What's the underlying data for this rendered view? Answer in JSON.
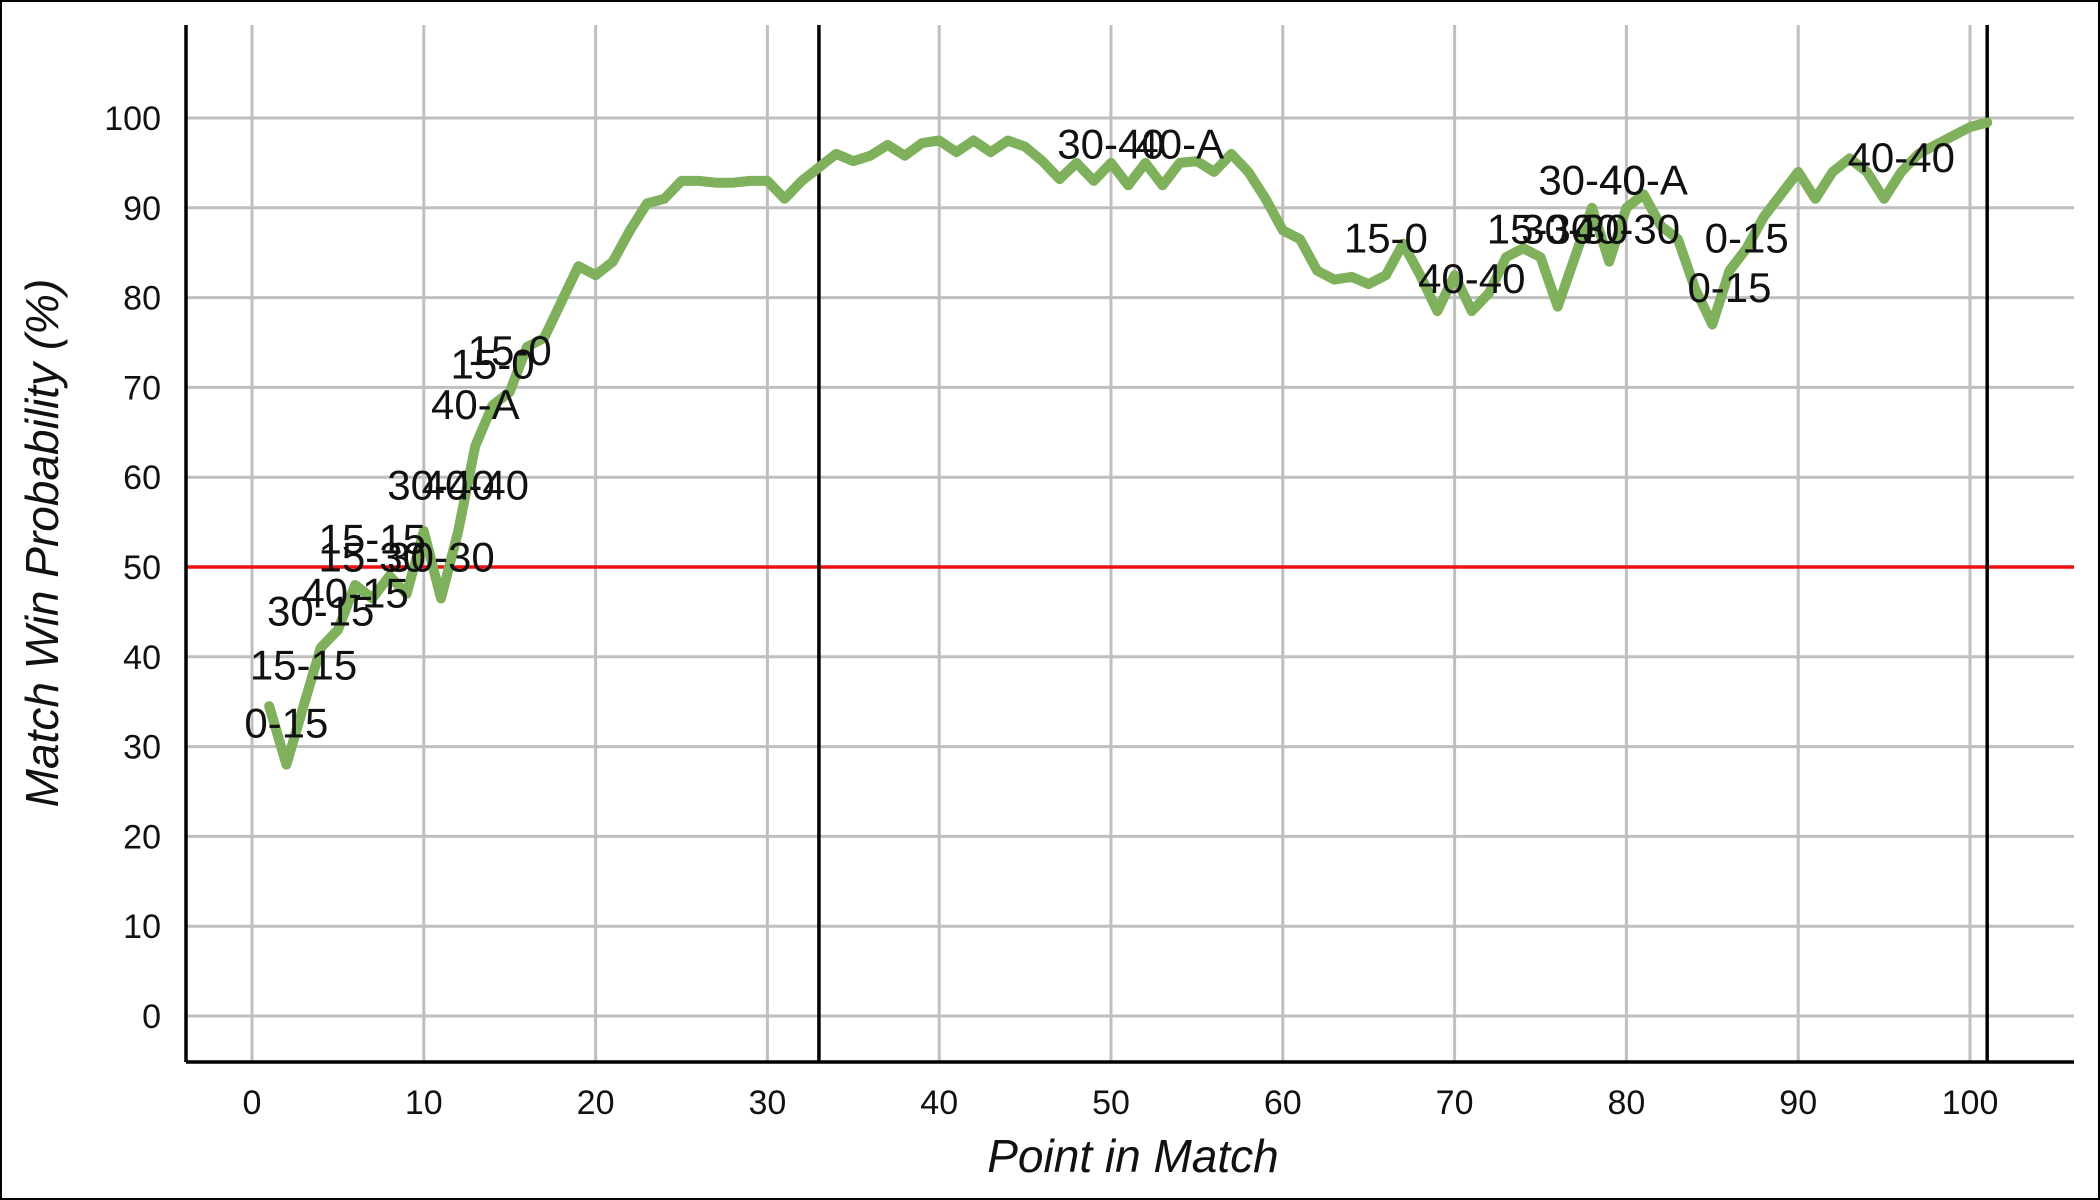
{
  "chart_data": {
    "type": "line",
    "title": "",
    "xlabel": "Point in Match",
    "ylabel": "Match Win Probability (%)",
    "xlim": [
      -4,
      106
    ],
    "ylim": [
      -5,
      110
    ],
    "x_ticks": [
      0,
      10,
      20,
      30,
      40,
      50,
      60,
      70,
      80,
      90,
      100
    ],
    "y_ticks": [
      0,
      10,
      20,
      30,
      40,
      50,
      60,
      70,
      80,
      90,
      100
    ],
    "grid": true,
    "reference_line": {
      "y": 50,
      "color": "#ee1111"
    },
    "vertical_markers": [
      33,
      101
    ],
    "series": [
      {
        "color": "#7fb05b",
        "x": [
          1,
          2,
          3,
          4,
          5,
          6,
          7,
          8,
          9,
          10,
          11,
          12,
          13,
          14,
          15,
          16,
          17,
          18,
          19,
          20,
          21,
          22,
          23,
          24,
          25,
          26,
          27,
          28,
          29,
          30,
          31,
          32,
          33,
          34,
          35,
          36,
          37,
          38,
          39,
          40,
          41,
          42,
          43,
          44,
          45,
          46,
          47,
          48,
          49,
          50,
          51,
          52,
          53,
          54,
          55,
          56,
          57,
          58,
          59,
          60,
          61,
          62,
          63,
          64,
          65,
          66,
          67,
          68,
          69,
          70,
          71,
          72,
          73,
          74,
          75,
          76,
          77,
          78,
          79,
          80,
          81,
          82,
          83,
          84,
          85,
          86,
          87,
          88,
          89,
          90,
          91,
          92,
          93,
          94,
          95,
          96,
          97,
          98,
          99,
          100,
          101
        ],
        "y": [
          34.5,
          28,
          34.5,
          41,
          43,
          48,
          46.5,
          49,
          47,
          54,
          46.5,
          54,
          63.5,
          68,
          69.5,
          74.5,
          75.5,
          79.5,
          83.5,
          82.5,
          84,
          87.5,
          90.5,
          91,
          93,
          93,
          92.8,
          92.8,
          93,
          93,
          91,
          93,
          94.5,
          96,
          95.2,
          95.8,
          97,
          95.8,
          97.2,
          97.5,
          96.2,
          97.5,
          96.2,
          97.5,
          96.8,
          95.2,
          93.2,
          95,
          93,
          95,
          92.5,
          95,
          92.5,
          95,
          95.2,
          94,
          96,
          94,
          91,
          87.5,
          86.5,
          83,
          82,
          82.3,
          81.5,
          82.5,
          86,
          82.5,
          78.5,
          82.5,
          78.5,
          80.5,
          84.5,
          85.5,
          84.5,
          79,
          84.5,
          90,
          84,
          90,
          91.5,
          88,
          86.5,
          81,
          77,
          83,
          85.5,
          89,
          91.5,
          94,
          91,
          94,
          95.5,
          94,
          91,
          94,
          96,
          97,
          98,
          99,
          99.5
        ]
      }
    ],
    "annotations": [
      {
        "text": "0-15",
        "x": 2,
        "y": 31
      },
      {
        "text": "15-15",
        "x": 3,
        "y": 37.5
      },
      {
        "text": "30-15",
        "x": 4,
        "y": 43.5
      },
      {
        "text": "40-15",
        "x": 6,
        "y": 45.5
      },
      {
        "text": "15-15",
        "x": 7,
        "y": 51.5
      },
      {
        "text": "15-30",
        "x": 7,
        "y": 49.5
      },
      {
        "text": "30-30",
        "x": 11,
        "y": 49.5
      },
      {
        "text": "30-40",
        "x": 11,
        "y": 57.5
      },
      {
        "text": "40-40",
        "x": 13,
        "y": 57.5
      },
      {
        "text": "40-A",
        "x": 13,
        "y": 66.5
      },
      {
        "text": "15-0",
        "x": 14,
        "y": 71
      },
      {
        "text": "15-0",
        "x": 15,
        "y": 72.5
      },
      {
        "text": "30-40",
        "x": 50,
        "y": 95.5
      },
      {
        "text": "40-A",
        "x": 54,
        "y": 95.5
      },
      {
        "text": "15-0",
        "x": 66,
        "y": 85
      },
      {
        "text": "40-40",
        "x": 71,
        "y": 80.5
      },
      {
        "text": "15-30",
        "x": 75,
        "y": 86
      },
      {
        "text": "30-30",
        "x": 77,
        "y": 86
      },
      {
        "text": "40-30",
        "x": 80,
        "y": 86
      },
      {
        "text": "30-40",
        "x": 78,
        "y": 91.5
      },
      {
        "text": "40-A",
        "x": 81,
        "y": 91.5
      },
      {
        "text": "0-15",
        "x": 87,
        "y": 85
      },
      {
        "text": "0-15",
        "x": 86,
        "y": 79.5
      },
      {
        "text": "40-40",
        "x": 96,
        "y": 94
      }
    ]
  }
}
